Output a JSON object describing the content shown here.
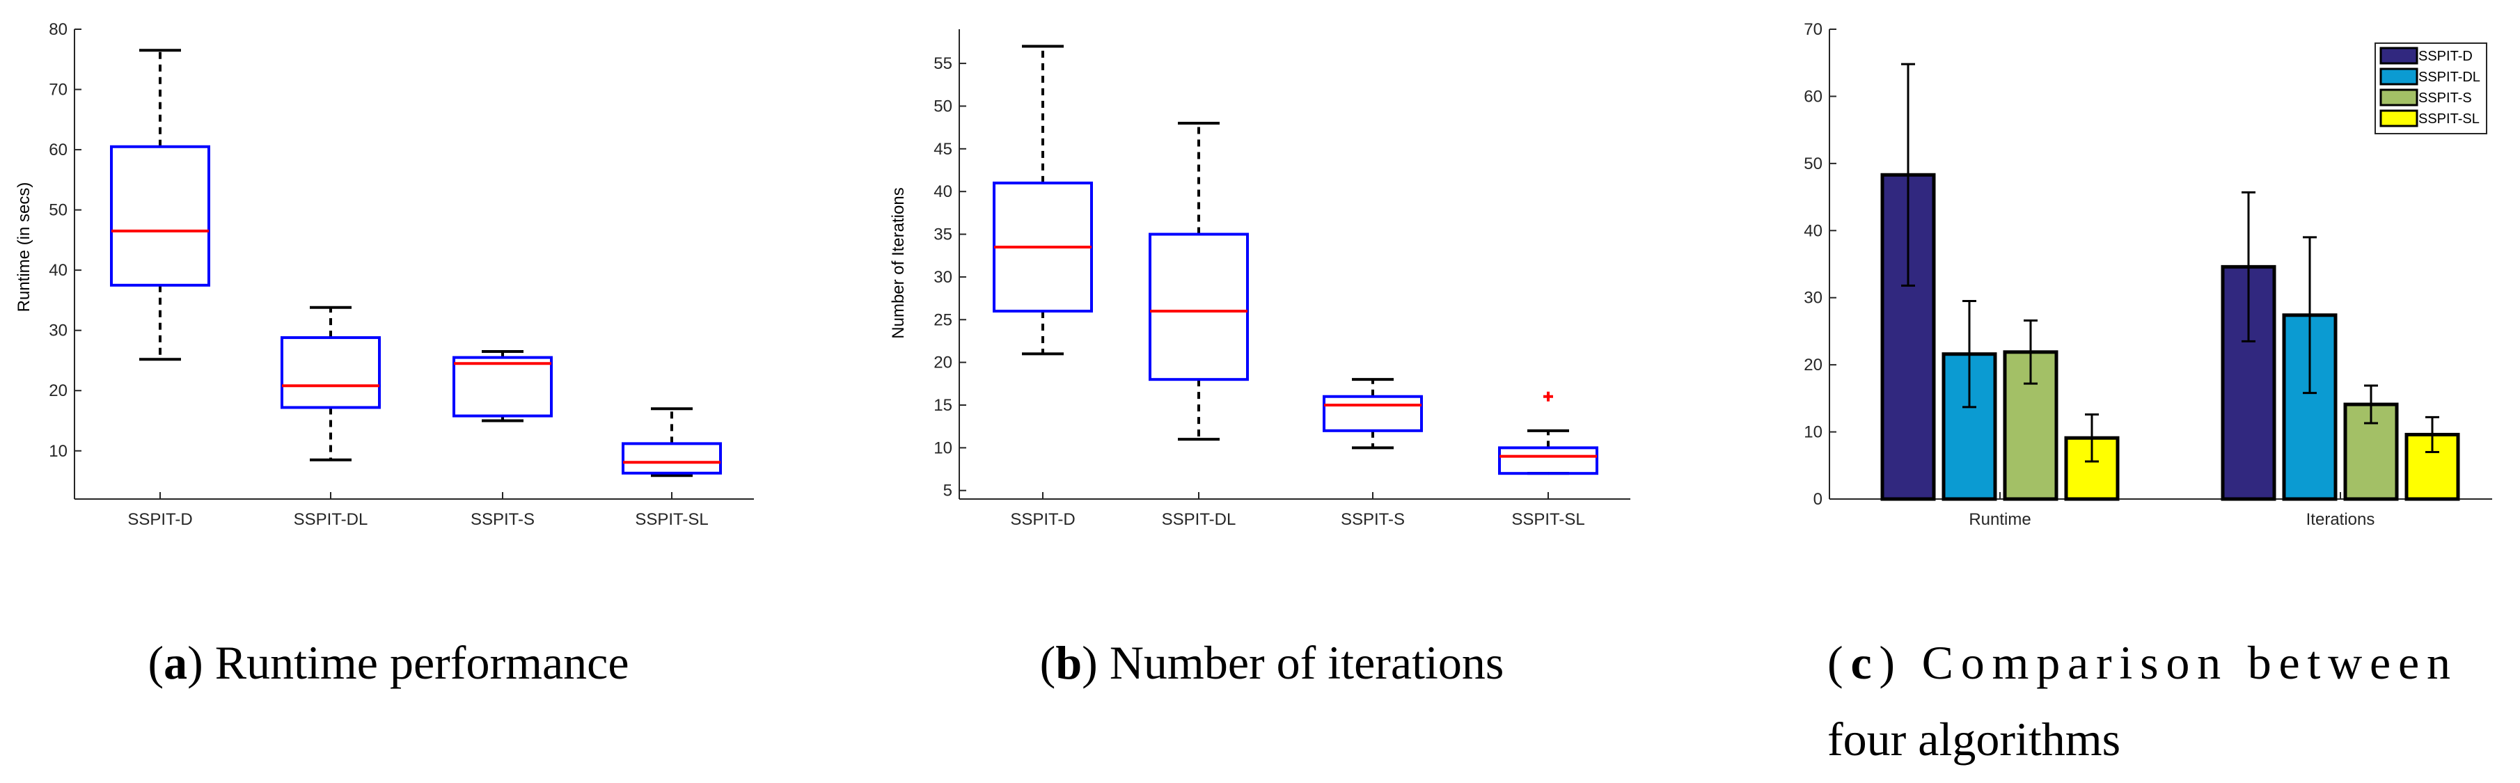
{
  "chart_data": [
    {
      "type": "box",
      "panel": "a",
      "ylabel": "Runtime (in secs)",
      "ylim": [
        2,
        80
      ],
      "yticks": [
        10,
        20,
        30,
        40,
        50,
        60,
        70,
        80
      ],
      "categories": [
        "SSPIT-D",
        "SSPIT-DL",
        "SSPIT-S",
        "SSPIT-SL"
      ],
      "boxes": [
        {
          "min": 25.2,
          "q1": 37.5,
          "median": 46.5,
          "q3": 60.5,
          "max": 76.5,
          "outliers": []
        },
        {
          "min": 8.5,
          "q1": 17.2,
          "median": 20.8,
          "q3": 28.8,
          "max": 33.8,
          "outliers": []
        },
        {
          "min": 15.0,
          "q1": 15.8,
          "median": 24.5,
          "q3": 25.5,
          "max": 26.5,
          "outliers": []
        },
        {
          "min": 5.9,
          "q1": 6.3,
          "median": 8.1,
          "q3": 11.2,
          "max": 17.0,
          "outliers": []
        }
      ],
      "caption": {
        "label": "a",
        "text": "Runtime performance"
      }
    },
    {
      "type": "box",
      "panel": "b",
      "ylabel": "Number of Iterations",
      "ylim": [
        4,
        59
      ],
      "yticks": [
        5,
        10,
        15,
        20,
        25,
        30,
        35,
        40,
        45,
        50,
        55
      ],
      "categories": [
        "SSPIT-D",
        "SSPIT-DL",
        "SSPIT-S",
        "SSPIT-SL"
      ],
      "boxes": [
        {
          "min": 21,
          "q1": 26,
          "median": 33.5,
          "q3": 41,
          "max": 57,
          "outliers": []
        },
        {
          "min": 11,
          "q1": 18,
          "median": 26,
          "q3": 35,
          "max": 48,
          "outliers": []
        },
        {
          "min": 10,
          "q1": 12,
          "median": 15,
          "q3": 16,
          "max": 18,
          "outliers": []
        },
        {
          "min": 7,
          "q1": 7,
          "median": 9,
          "q3": 10,
          "max": 12,
          "outliers": [
            16
          ]
        }
      ],
      "caption": {
        "label": "b",
        "text": "Number of iterations"
      }
    },
    {
      "type": "bar",
      "panel": "c",
      "ylim": [
        0,
        70
      ],
      "yticks": [
        0,
        10,
        20,
        30,
        40,
        50,
        60,
        70
      ],
      "categories": [
        "Runtime",
        "Iterations"
      ],
      "series": [
        {
          "name": "SSPIT-D",
          "color": "#31287f",
          "values": [
            48.3,
            34.6
          ],
          "err": [
            16.5,
            11.1
          ]
        },
        {
          "name": "SSPIT-DL",
          "color": "#0b9bd2",
          "values": [
            21.6,
            27.4
          ],
          "err": [
            7.9,
            11.6
          ]
        },
        {
          "name": "SSPIT-S",
          "color": "#a3c066",
          "values": [
            21.9,
            14.1
          ],
          "err": [
            4.7,
            2.8
          ]
        },
        {
          "name": "SSPIT-SL",
          "color": "#ffff00",
          "values": [
            9.1,
            9.6
          ],
          "err": [
            3.5,
            2.6
          ]
        }
      ],
      "legend": "top-right",
      "caption": {
        "label": "c",
        "text_line1": "Comparison between",
        "text_line2": "four algorithms"
      }
    }
  ]
}
